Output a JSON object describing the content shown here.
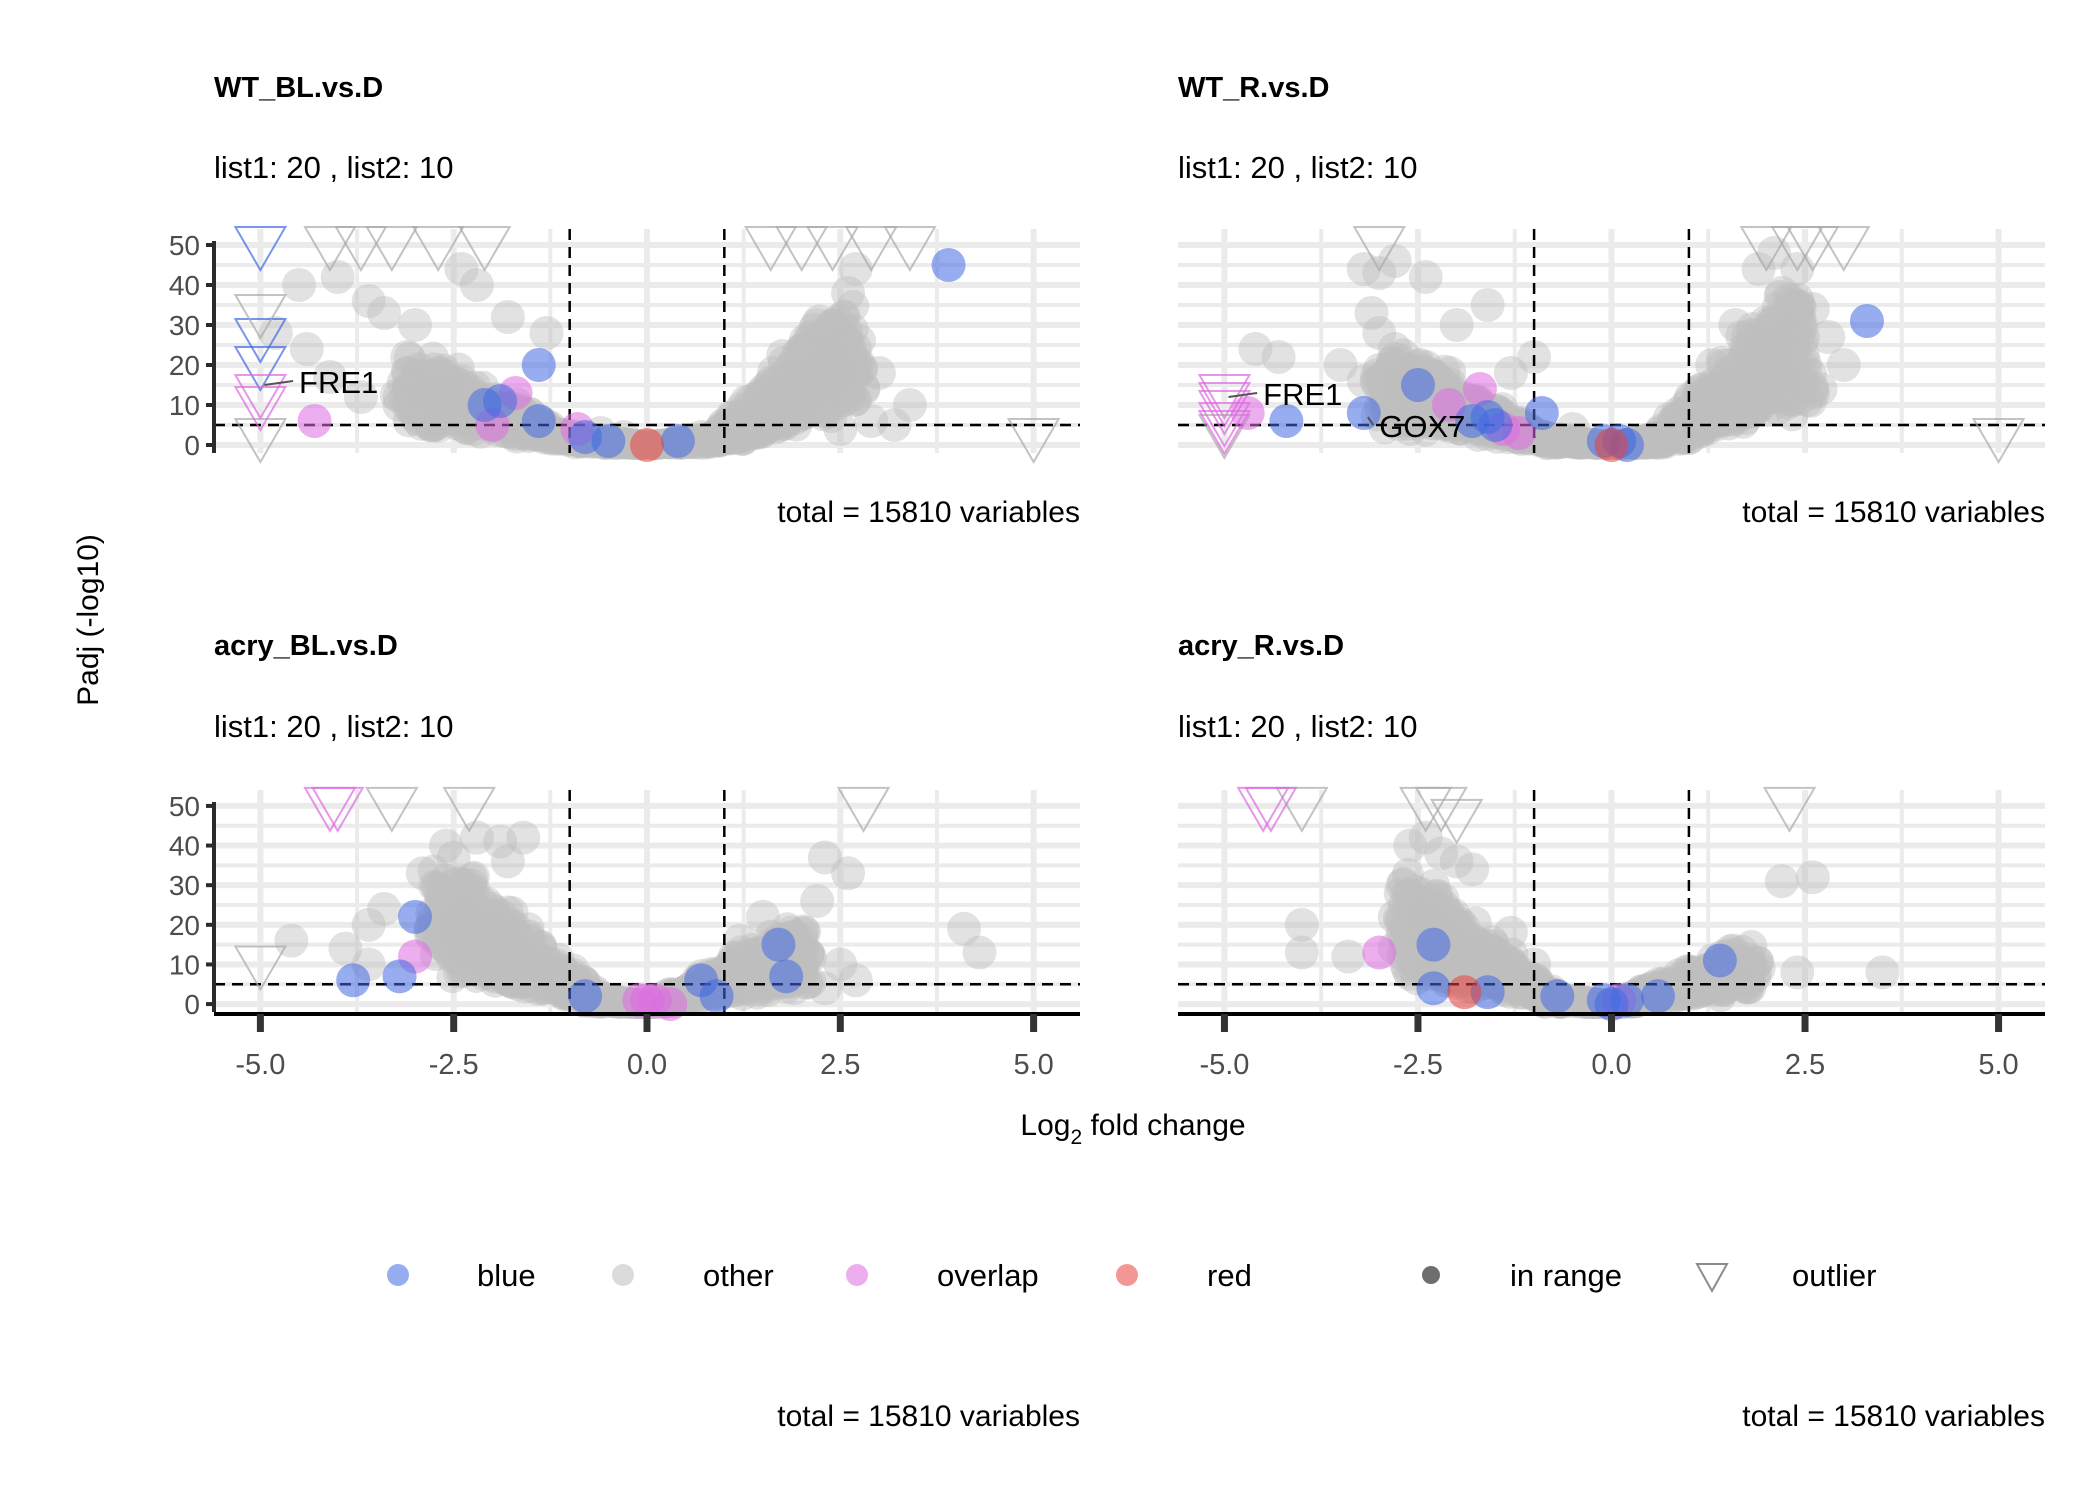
{
  "chart_data": {
    "type": "scatter",
    "x_axis_title": "Log2 fold change",
    "y_axis_title": "Padj (-log10)",
    "xlim": [
      -5.6,
      5.6
    ],
    "ylim": [
      -2,
      52
    ],
    "x_ticks": [
      "-5.0",
      "-2.5",
      "0.0",
      "2.5",
      "5.0"
    ],
    "y_ticks": [
      "0",
      "10",
      "20",
      "30",
      "40",
      "50"
    ],
    "fold_change_thresholds": [
      -1,
      1
    ],
    "padj_threshold": 5,
    "grid": true,
    "legend_position": "bottom",
    "legend": {
      "groups": [
        {
          "label": "blue",
          "color": "#4169e1"
        },
        {
          "label": "other",
          "color": "#bebebe"
        },
        {
          "label": "overlap",
          "color": "#dd6be0"
        },
        {
          "label": "red",
          "color": "#e8413c"
        }
      ],
      "shapes": [
        {
          "label": "in range",
          "shape": "circle"
        },
        {
          "label": "outlier",
          "shape": "triangle"
        }
      ]
    },
    "bottom_captions": [
      "total = 15810 variables",
      "total = 15810 variables"
    ],
    "panels": [
      {
        "title": "WT_BL.vs.D",
        "subtitle": "list1: 20 , list2:  10",
        "caption": "total = 15810 variables",
        "labels": [
          {
            "text": "FRE1",
            "x": -5.0,
            "y": 15,
            "tx": -4.5,
            "ty": 15
          }
        ],
        "points": {
          "blue": [
            [
              3.9,
              45
            ],
            [
              -1.4,
              20
            ],
            [
              -2.1,
              10
            ],
            [
              -1.9,
              11
            ],
            [
              -1.4,
              6
            ],
            [
              -0.8,
              2
            ],
            [
              -0.5,
              1
            ],
            [
              0.4,
              1
            ]
          ],
          "overlap": [
            [
              -4.3,
              6
            ],
            [
              -1.7,
              13
            ],
            [
              -2.0,
              5
            ],
            [
              -0.9,
              4
            ]
          ],
          "red": [
            [
              0.0,
              0
            ]
          ]
        },
        "outliers": {
          "blue": [
            [
              -5.0,
              50
            ],
            [
              -5.0,
              27
            ],
            [
              -5.0,
              20
            ]
          ],
          "other": [
            [
              -4.1,
              50
            ],
            [
              -3.7,
              50
            ],
            [
              -3.3,
              50
            ],
            [
              -2.7,
              50
            ],
            [
              -2.1,
              50
            ],
            [
              -5.0,
              33
            ],
            [
              -5.0,
              2
            ],
            [
              1.6,
              50
            ],
            [
              2.0,
              50
            ],
            [
              2.4,
              50
            ],
            [
              2.9,
              50
            ],
            [
              3.4,
              50
            ],
            [
              5.0,
              2
            ]
          ],
          "overlap": [
            [
              -5.0,
              13
            ],
            [
              -5.0,
              10
            ]
          ]
        },
        "other_clouds": [
          {
            "side": "left",
            "x_start": -1.0,
            "x_end": -3.0,
            "base": 1,
            "growth": 14,
            "spread": 7,
            "n": 420
          },
          {
            "side": "right",
            "x_start": 1.0,
            "x_end": 2.6,
            "base": 1,
            "growth": 24,
            "spread": 8,
            "n": 520
          }
        ],
        "other_extra": [
          [
            -4.5,
            40
          ],
          [
            -4.0,
            42
          ],
          [
            -3.6,
            36
          ],
          [
            -3.4,
            33
          ],
          [
            -3.0,
            30
          ],
          [
            -4.8,
            28
          ],
          [
            -4.4,
            24
          ],
          [
            -3.1,
            22
          ],
          [
            -2.7,
            18
          ],
          [
            -4.1,
            17
          ],
          [
            -3.7,
            12
          ],
          [
            -3.2,
            10
          ],
          [
            -2.9,
            15
          ],
          [
            -2.6,
            8
          ],
          [
            -2.4,
            44
          ],
          [
            -2.2,
            40
          ],
          [
            -1.8,
            32
          ],
          [
            -1.3,
            28
          ],
          [
            2.2,
            30
          ],
          [
            2.4,
            22
          ],
          [
            2.6,
            38
          ],
          [
            2.8,
            14
          ],
          [
            3.0,
            18
          ],
          [
            3.4,
            10
          ],
          [
            2.9,
            6
          ],
          [
            2.7,
            44
          ],
          [
            3.2,
            5
          ],
          [
            1.8,
            10
          ],
          [
            2.5,
            4
          ],
          [
            1.4,
            4
          ],
          [
            1.1,
            3
          ],
          [
            0.7,
            2
          ],
          [
            -0.6,
            3
          ],
          [
            -0.3,
            2
          ]
        ]
      },
      {
        "title": "WT_R.vs.D",
        "subtitle": "list1: 20 , list2:  10",
        "caption": "total = 15810 variables",
        "labels": [
          {
            "text": "FRE1",
            "x": -5.0,
            "y": 12,
            "tx": -4.5,
            "ty": 12
          },
          {
            "text": "GOX7",
            "x": -3.2,
            "y": 7,
            "tx": -3.0,
            "ty": 4
          }
        ],
        "points": {
          "blue": [
            [
              3.3,
              31
            ],
            [
              -2.5,
              15
            ],
            [
              -4.2,
              6
            ],
            [
              -3.2,
              8
            ],
            [
              -1.6,
              7
            ],
            [
              -1.8,
              6
            ],
            [
              -1.5,
              5
            ],
            [
              -0.9,
              8
            ],
            [
              -0.1,
              1
            ],
            [
              0.1,
              1
            ],
            [
              0.2,
              0
            ]
          ],
          "overlap": [
            [
              -4.7,
              8
            ],
            [
              -1.7,
              14
            ],
            [
              -2.1,
              10
            ],
            [
              -1.4,
              4
            ],
            [
              -1.2,
              3
            ]
          ],
          "red": [
            [
              0.0,
              0
            ]
          ]
        },
        "outliers": {
          "other": [
            [
              -3.0,
              50
            ],
            [
              2.0,
              50
            ],
            [
              2.4,
              50
            ],
            [
              2.6,
              50
            ],
            [
              3.0,
              50
            ],
            [
              -5.0,
              3
            ],
            [
              5.0,
              2
            ]
          ],
          "overlap": [
            [
              -5.0,
              13
            ],
            [
              -5.0,
              11
            ],
            [
              -5.0,
              9
            ],
            [
              -5.0,
              6
            ],
            [
              -5.0,
              4
            ]
          ]
        },
        "other_clouds": [
          {
            "side": "left",
            "x_start": -0.9,
            "x_end": -2.9,
            "base": 1,
            "growth": 16,
            "spread": 8,
            "n": 420
          },
          {
            "side": "right",
            "x_start": 0.7,
            "x_end": 2.4,
            "base": 1,
            "growth": 26,
            "spread": 8,
            "n": 520
          }
        ],
        "other_extra": [
          [
            -3.2,
            44
          ],
          [
            -3.0,
            43
          ],
          [
            -2.8,
            46
          ],
          [
            -2.4,
            42
          ],
          [
            -3.1,
            33
          ],
          [
            -3.0,
            28
          ],
          [
            -4.6,
            24
          ],
          [
            -4.3,
            22
          ],
          [
            -3.5,
            20
          ],
          [
            -2.8,
            24
          ],
          [
            -3.2,
            16
          ],
          [
            -2.6,
            4
          ],
          [
            -2.0,
            30
          ],
          [
            -1.6,
            35
          ],
          [
            -1.3,
            18
          ],
          [
            -1.0,
            22
          ],
          [
            2.1,
            48
          ],
          [
            2.4,
            44
          ],
          [
            2.6,
            34
          ],
          [
            2.8,
            27
          ],
          [
            3.0,
            20
          ],
          [
            2.7,
            14
          ],
          [
            2.2,
            38
          ],
          [
            1.9,
            44
          ],
          [
            1.6,
            30
          ],
          [
            1.3,
            20
          ],
          [
            1.1,
            10
          ],
          [
            0.8,
            6
          ],
          [
            -0.5,
            4
          ]
        ]
      },
      {
        "title": "acry_BL.vs.D",
        "subtitle": "list1: 20 , list2:  10",
        "caption": "",
        "labels": [],
        "points": {
          "blue": [
            [
              -3.0,
              22
            ],
            [
              -3.8,
              6
            ],
            [
              -3.2,
              7
            ],
            [
              -0.8,
              2
            ],
            [
              0.7,
              6
            ],
            [
              0.9,
              2
            ],
            [
              1.7,
              15
            ],
            [
              1.8,
              7
            ]
          ],
          "overlap": [
            [
              -3.0,
              12
            ],
            [
              -0.1,
              1
            ],
            [
              0.0,
              1
            ],
            [
              0.1,
              1
            ],
            [
              0.3,
              0
            ]
          ],
          "red": []
        },
        "outliers": {
          "other": [
            [
              -3.3,
              50
            ],
            [
              -2.3,
              50
            ],
            [
              2.8,
              50
            ],
            [
              -5.0,
              10
            ]
          ],
          "overlap": [
            [
              -4.1,
              50
            ],
            [
              -4.0,
              50
            ]
          ]
        },
        "other_clouds": [
          {
            "side": "left",
            "x_start": -0.8,
            "x_end": -2.6,
            "base": 2,
            "growth": 22,
            "spread": 10,
            "n": 520
          },
          {
            "side": "right",
            "x_start": 0.3,
            "x_end": 2.0,
            "base": 1,
            "growth": 13,
            "spread": 6,
            "n": 300
          }
        ],
        "other_extra": [
          [
            -2.6,
            40
          ],
          [
            -2.5,
            37
          ],
          [
            -2.2,
            42
          ],
          [
            -1.9,
            41
          ],
          [
            -1.6,
            42
          ],
          [
            -1.8,
            36
          ],
          [
            -2.9,
            33
          ],
          [
            -3.4,
            24
          ],
          [
            -3.6,
            20
          ],
          [
            -4.6,
            16
          ],
          [
            -3.9,
            14
          ],
          [
            -3.6,
            10
          ],
          [
            -2.8,
            18
          ],
          [
            -2.5,
            30
          ],
          [
            2.3,
            37
          ],
          [
            2.6,
            33
          ],
          [
            2.2,
            26
          ],
          [
            2.5,
            10
          ],
          [
            2.7,
            6
          ],
          [
            4.1,
            19
          ],
          [
            4.3,
            13
          ],
          [
            2.0,
            14
          ],
          [
            1.5,
            22
          ],
          [
            1.2,
            16
          ],
          [
            1.9,
            4
          ],
          [
            2.3,
            4
          ]
        ]
      },
      {
        "title": "acry_R.vs.D",
        "subtitle": "list1: 20 , list2:  10",
        "caption": "",
        "labels": [],
        "points": {
          "blue": [
            [
              -2.3,
              15
            ],
            [
              -2.3,
              4
            ],
            [
              -1.6,
              3
            ],
            [
              -0.7,
              2
            ],
            [
              -0.1,
              1
            ],
            [
              0.0,
              0
            ],
            [
              0.2,
              1
            ],
            [
              0.6,
              2
            ],
            [
              1.4,
              11
            ]
          ],
          "overlap": [
            [
              -3.0,
              13
            ],
            [
              0.1,
              1
            ]
          ],
          "red": [
            [
              -1.9,
              3
            ]
          ]
        },
        "outliers": {
          "other": [
            [
              -4.0,
              50
            ],
            [
              -2.4,
              50
            ],
            [
              -2.2,
              50
            ],
            [
              -2.0,
              47
            ],
            [
              2.3,
              50
            ]
          ],
          "overlap": [
            [
              -4.5,
              50
            ],
            [
              -4.4,
              50
            ]
          ]
        },
        "other_clouds": [
          {
            "side": "left",
            "x_start": -0.9,
            "x_end": -2.6,
            "base": 2,
            "growth": 20,
            "spread": 9,
            "n": 480
          },
          {
            "side": "right",
            "x_start": 0.3,
            "x_end": 1.8,
            "base": 1,
            "growth": 9,
            "spread": 5,
            "n": 260
          }
        ],
        "other_extra": [
          [
            -2.6,
            40
          ],
          [
            -2.4,
            42
          ],
          [
            -2.2,
            38
          ],
          [
            -2.7,
            30
          ],
          [
            -2.0,
            36
          ],
          [
            -1.8,
            34
          ],
          [
            -4.0,
            20
          ],
          [
            -4.0,
            13
          ],
          [
            -3.4,
            12
          ],
          [
            -2.8,
            22
          ],
          [
            -2.5,
            26
          ],
          [
            2.2,
            31
          ],
          [
            2.6,
            32
          ],
          [
            1.9,
            9
          ],
          [
            2.4,
            8
          ],
          [
            3.5,
            8
          ],
          [
            1.6,
            6
          ],
          [
            1.2,
            6
          ],
          [
            1.0,
            4
          ],
          [
            -1.3,
            18
          ],
          [
            -1.0,
            10
          ]
        ]
      }
    ]
  }
}
